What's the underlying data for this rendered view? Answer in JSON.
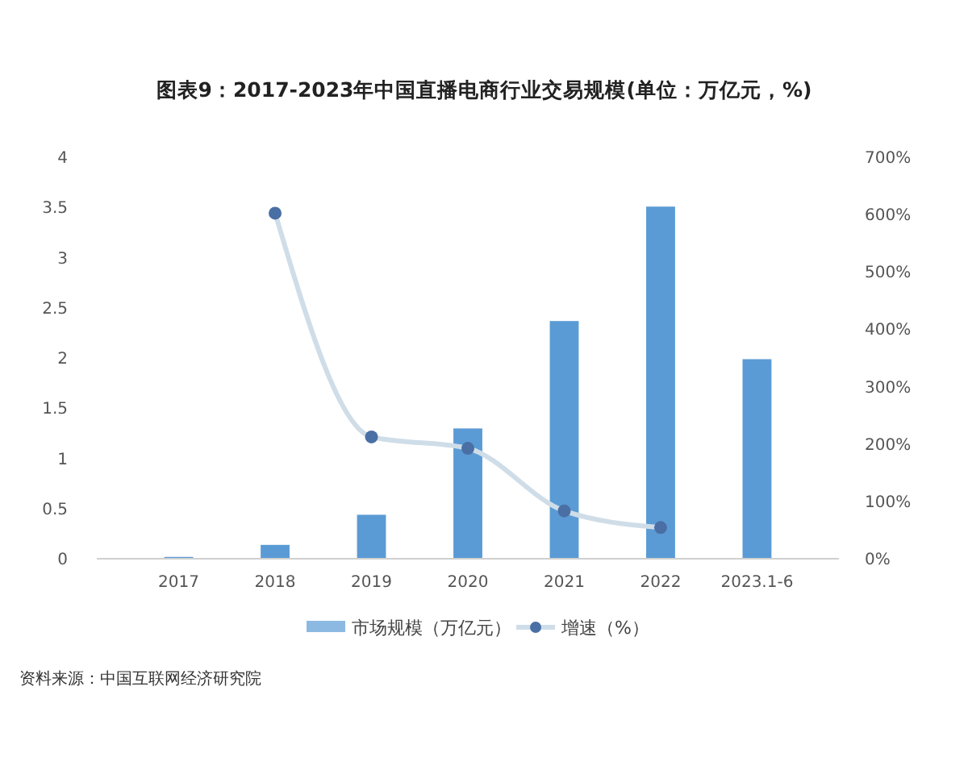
{
  "chart_data": {
    "type": "bar",
    "title": "图表9：2017-2023年中国直播电商行业交易规模(单位：万亿元，%)",
    "categories": [
      "2017",
      "2018",
      "2019",
      "2020",
      "2021",
      "2022",
      "2023.1-6"
    ],
    "series": [
      {
        "name": "市场规模（万亿元）",
        "color": "#5b9bd5",
        "values": [
          0.01,
          0.13,
          0.43,
          1.29,
          2.36,
          3.5,
          1.98
        ]
      },
      {
        "name": "增速（%）",
        "type": "line",
        "axis": "y2",
        "color": "#4a6fa5",
        "values": [
          null,
          601,
          211,
          191,
          82,
          53,
          null
        ]
      }
    ],
    "ylim": [
      0,
      4
    ],
    "yticks": [
      0,
      0.5,
      1,
      1.5,
      2,
      2.5,
      3,
      3.5,
      4
    ],
    "y2lim": [
      0,
      700
    ],
    "y2ticks": [
      {
        "value": 0,
        "label": "0%"
      },
      {
        "value": 100,
        "label": "100%"
      },
      {
        "value": 200,
        "label": "200%"
      },
      {
        "value": 300,
        "label": "300%"
      },
      {
        "value": 400,
        "label": "400%"
      },
      {
        "value": 500,
        "label": "500%"
      },
      {
        "value": 600,
        "label": "600%"
      },
      {
        "value": 700,
        "label": "700%"
      }
    ],
    "marker": "circle",
    "legend": "bottom",
    "grid": false,
    "annotations": [
      "资料来源：中国互联网经济研究院"
    ]
  }
}
